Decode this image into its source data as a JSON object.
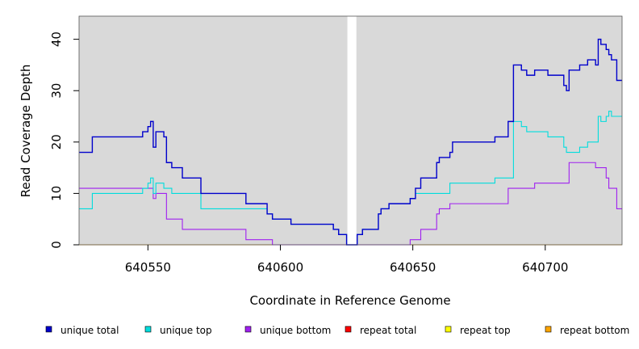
{
  "chart_data": {
    "type": "line",
    "step": true,
    "xlabel": "Coordinate in Reference Genome",
    "ylabel": "Read Coverage Depth",
    "xlim": [
      640524,
      640729
    ],
    "ylim": [
      0,
      44.5
    ],
    "xticks": [
      640550,
      640600,
      640650,
      640700
    ],
    "xtick_labels": [
      "640550",
      "640600",
      "640650",
      "640700"
    ],
    "yticks": [
      0,
      10,
      20,
      30,
      40
    ],
    "ytick_labels": [
      "0",
      "10",
      "20",
      "30",
      "40"
    ],
    "background_color": "#d9d9d9",
    "gap": [
      640625,
      640629
    ],
    "legend_position": "bottom",
    "series": [
      {
        "name": "unique total",
        "color": "#0000cc",
        "points": [
          [
            640524,
            18
          ],
          [
            640529,
            21
          ],
          [
            640548,
            22
          ],
          [
            640550,
            23
          ],
          [
            640551,
            24
          ],
          [
            640552,
            19
          ],
          [
            640553,
            22
          ],
          [
            640556,
            21
          ],
          [
            640557,
            16
          ],
          [
            640559,
            15
          ],
          [
            640563,
            13
          ],
          [
            640570,
            10
          ],
          [
            640587,
            8
          ],
          [
            640595,
            6
          ],
          [
            640597,
            5
          ],
          [
            640604,
            4
          ],
          [
            640620,
            3
          ],
          [
            640622,
            2
          ],
          [
            640625,
            0
          ],
          [
            640629,
            2
          ],
          [
            640631,
            3
          ],
          [
            640637,
            6
          ],
          [
            640638,
            7
          ],
          [
            640641,
            8
          ],
          [
            640649,
            9
          ],
          [
            640651,
            11
          ],
          [
            640653,
            13
          ],
          [
            640659,
            16
          ],
          [
            640660,
            17
          ],
          [
            640664,
            18
          ],
          [
            640665,
            20
          ],
          [
            640681,
            21
          ],
          [
            640686,
            24
          ],
          [
            640688,
            35
          ],
          [
            640691,
            34
          ],
          [
            640693,
            33
          ],
          [
            640696,
            34
          ],
          [
            640701,
            33
          ],
          [
            640707,
            31
          ],
          [
            640708,
            30
          ],
          [
            640709,
            34
          ],
          [
            640713,
            35
          ],
          [
            640716,
            36
          ],
          [
            640719,
            35
          ],
          [
            640720,
            40
          ],
          [
            640721,
            39
          ],
          [
            640723,
            38
          ],
          [
            640724,
            37
          ],
          [
            640725,
            36
          ],
          [
            640727,
            32
          ],
          [
            640729,
            32
          ]
        ]
      },
      {
        "name": "unique top",
        "color": "#00dddd",
        "points": [
          [
            640524,
            7
          ],
          [
            640529,
            10
          ],
          [
            640548,
            11
          ],
          [
            640550,
            12
          ],
          [
            640551,
            13
          ],
          [
            640552,
            10
          ],
          [
            640553,
            12
          ],
          [
            640556,
            11
          ],
          [
            640559,
            10
          ],
          [
            640570,
            7
          ],
          [
            640595,
            6
          ],
          [
            640597,
            5
          ],
          [
            640604,
            4
          ],
          [
            640620,
            3
          ],
          [
            640622,
            2
          ],
          [
            640625,
            0
          ],
          [
            640629,
            2
          ],
          [
            640631,
            3
          ],
          [
            640637,
            6
          ],
          [
            640638,
            7
          ],
          [
            640641,
            8
          ],
          [
            640649,
            9
          ],
          [
            640651,
            10
          ],
          [
            640664,
            12
          ],
          [
            640681,
            13
          ],
          [
            640688,
            24
          ],
          [
            640691,
            23
          ],
          [
            640693,
            22
          ],
          [
            640701,
            21
          ],
          [
            640707,
            19
          ],
          [
            640708,
            18
          ],
          [
            640713,
            19
          ],
          [
            640716,
            20
          ],
          [
            640720,
            25
          ],
          [
            640721,
            24
          ],
          [
            640723,
            25
          ],
          [
            640724,
            26
          ],
          [
            640725,
            25
          ],
          [
            640729,
            25
          ]
        ]
      },
      {
        "name": "unique bottom",
        "color": "#a020f0",
        "points": [
          [
            640524,
            11
          ],
          [
            640548,
            11
          ],
          [
            640550,
            11
          ],
          [
            640552,
            9
          ],
          [
            640553,
            10
          ],
          [
            640557,
            5
          ],
          [
            640563,
            3
          ],
          [
            640587,
            1
          ],
          [
            640597,
            0
          ],
          [
            640649,
            1
          ],
          [
            640653,
            3
          ],
          [
            640659,
            6
          ],
          [
            640660,
            7
          ],
          [
            640664,
            8
          ],
          [
            640686,
            11
          ],
          [
            640696,
            12
          ],
          [
            640709,
            16
          ],
          [
            640719,
            15
          ],
          [
            640723,
            13
          ],
          [
            640724,
            11
          ],
          [
            640727,
            7
          ],
          [
            640729,
            7
          ]
        ]
      },
      {
        "name": "repeat total",
        "color": "#ff0000",
        "points": [
          [
            640524,
            0
          ],
          [
            640729,
            0
          ]
        ]
      },
      {
        "name": "repeat top",
        "color": "#ffff00",
        "points": [
          [
            640524,
            0
          ],
          [
            640729,
            0
          ]
        ]
      },
      {
        "name": "repeat bottom",
        "color": "#ffa500",
        "points": [
          [
            640524,
            0
          ],
          [
            640729,
            0
          ]
        ]
      }
    ]
  }
}
